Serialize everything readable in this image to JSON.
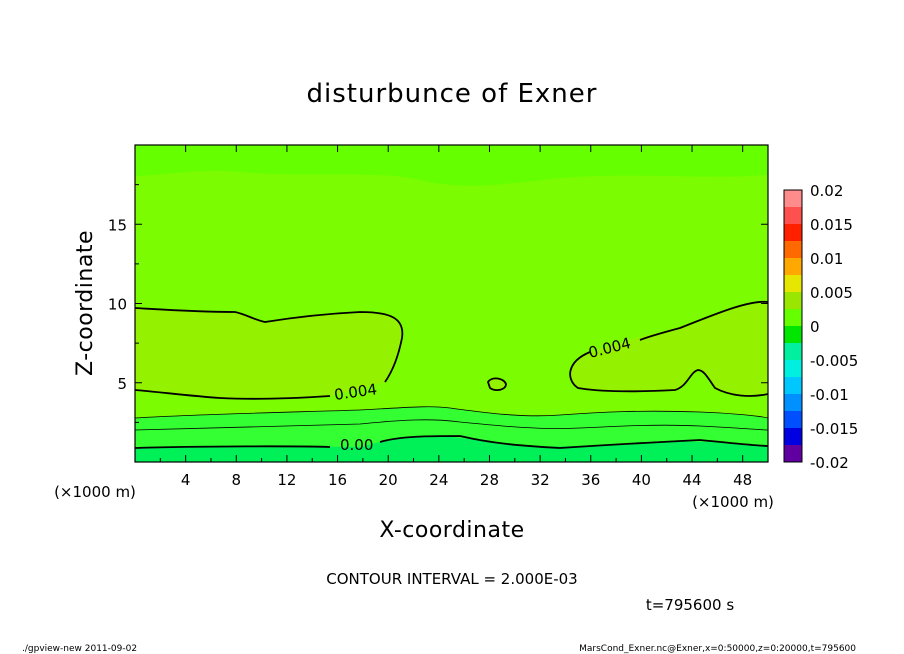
{
  "chart_data": {
    "type": "heatmap",
    "title": "disturbunce of Exner",
    "xlabel": "X-coordinate",
    "ylabel": "Z-coordinate",
    "x_unit_left": "(×1000 m)",
    "x_unit_right": "(×1000 m)",
    "xlim": [
      0,
      50
    ],
    "ylim": [
      0,
      20
    ],
    "xticks": [
      4,
      8,
      12,
      16,
      20,
      24,
      28,
      32,
      36,
      40,
      44,
      48
    ],
    "yticks": [
      5,
      10,
      15
    ],
    "colorbar": {
      "ticks": [
        "0.02",
        "0.015",
        "0.01",
        "0.005",
        "0",
        "-0.005",
        "-0.01",
        "-0.015",
        "-0.02"
      ],
      "levels": [
        {
          "from": 0.0175,
          "to": 0.02,
          "color": "#ff8c8c"
        },
        {
          "from": 0.015,
          "to": 0.0175,
          "color": "#ff5050"
        },
        {
          "from": 0.0125,
          "to": 0.015,
          "color": "#ff2000"
        },
        {
          "from": 0.01,
          "to": 0.0125,
          "color": "#ff6a00"
        },
        {
          "from": 0.0075,
          "to": 0.01,
          "color": "#ffa800"
        },
        {
          "from": 0.005,
          "to": 0.0075,
          "color": "#e6e600"
        },
        {
          "from": 0.0025,
          "to": 0.005,
          "color": "#9ae600"
        },
        {
          "from": 0.0,
          "to": 0.0025,
          "color": "#66ff00"
        },
        {
          "from": -0.0025,
          "to": 0.0,
          "color": "#00e600"
        },
        {
          "from": -0.005,
          "to": -0.0025,
          "color": "#00f0a0"
        },
        {
          "from": -0.0075,
          "to": -0.005,
          "color": "#00f0e0"
        },
        {
          "from": -0.01,
          "to": -0.0075,
          "color": "#00c8ff"
        },
        {
          "from": -0.0125,
          "to": -0.01,
          "color": "#0090ff"
        },
        {
          "from": -0.015,
          "to": -0.0125,
          "color": "#0050ff"
        },
        {
          "from": -0.0175,
          "to": -0.015,
          "color": "#0000e0"
        },
        {
          "from": -0.02,
          "to": -0.0175,
          "color": "#6000a0"
        }
      ]
    },
    "contour_labels": [
      {
        "text": "0.004",
        "x": 20.2,
        "z": 4.6
      },
      {
        "text": "0.004",
        "x": 35.0,
        "z": 6.6
      },
      {
        "text": "0.00",
        "x": 18.0,
        "z": 1.1
      }
    ],
    "contour_interval_text": "CONTOUR INTERVAL = 2.000E-03",
    "time_text": "t=795600 s",
    "colors": {
      "field_base": "#7cfc00",
      "field_high": "#94f200",
      "field_low": "#33ff33",
      "field_lowest": "#00f058",
      "field_upper_band": "#66ff00",
      "contour": "#000000"
    }
  },
  "footer": {
    "left": "./gpview-new  2011-09-02",
    "right": "MarsCond_Exner.nc@Exner,x=0:50000,z=0:20000,t=795600"
  }
}
